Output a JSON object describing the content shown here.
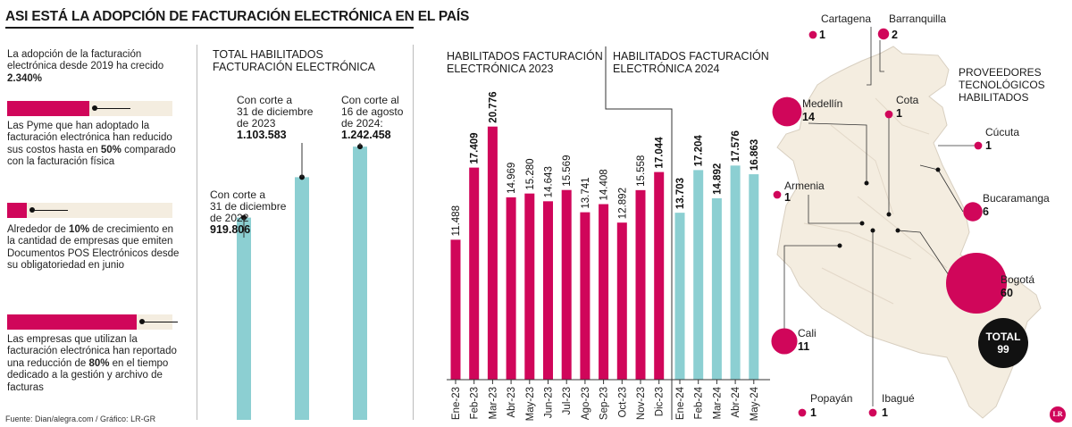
{
  "header": {
    "title": "ASI ESTÁ LA ADOPCIÓN DE FACTURACIÓN ELECTRÓNICA EN EL PAÍS",
    "source": "Fuente: Dian/alegra.com / Gráfico: LR-GR"
  },
  "facts": [
    {
      "pre": "La adopción de la facturación electrónica desde 2019 ha crecido ",
      "bold": "2.340%",
      "post": "",
      "bar_pct": null
    },
    {
      "pre": "Las Pyme que han adoptado la facturación electrónica han reducido sus costos hasta en ",
      "bold": "50%",
      "post": " comparado con la facturación física",
      "bar_pct": 50
    },
    {
      "pre": "Alrededor de ",
      "bold": "10%",
      "post": " de crecimiento en la cantidad de empresas que emiten Documentos POS Electrónicos desde su obligatoriedad en junio",
      "bar_pct": 10
    },
    {
      "pre": "Las empresas que utilizan la facturación electrónica han reportado una reducción de ",
      "bold": "80%",
      "post": " en el tiempo dedicado a la gestión y archivo de facturas",
      "bar_pct": 80
    }
  ],
  "colors": {
    "pink": "#d0065a",
    "teal": "#8ccfd2",
    "map": "#f4ede0",
    "track": "#f4ede0"
  },
  "chart_data": [
    {
      "type": "bar",
      "title": "TOTAL HABILITADOS FACTURACIÓN ELECTRÓNICA",
      "series": [
        {
          "values": [
            919806,
            1103583,
            1242458
          ]
        }
      ],
      "labels": [
        {
          "lines": [
            "Con corte a",
            "31 de diciembre",
            "de 2022"
          ],
          "value": "919.806"
        },
        {
          "lines": [
            "Con corte a",
            "31 de diciembre",
            "de 2023"
          ],
          "value": "1.103.583"
        },
        {
          "lines": [
            "Con corte al",
            "16 de agosto",
            "de 2024:"
          ],
          "value": "1.242.458"
        }
      ],
      "ylim": [
        0,
        1300000
      ]
    },
    {
      "type": "bar",
      "title": "HABILITADOS FACTURACIÓN ELECTRÓNICA 2023",
      "categories": [
        "Ene-23",
        "Feb-23",
        "Mar-23",
        "Abr-23",
        "May-23",
        "Jun-23",
        "Jul-23",
        "Ago-23",
        "Sep-23",
        "Oct-23",
        "Nov-23",
        "Dic-23"
      ],
      "values": [
        11488,
        17409,
        20776,
        14969,
        15280,
        14643,
        15569,
        13741,
        14408,
        12892,
        15558,
        17044
      ],
      "value_labels": [
        "11.488",
        "17.409",
        "20.776",
        "14.969",
        "15.280",
        "14.643",
        "15.569",
        "13.741",
        "14.408",
        "12.892",
        "15.558",
        "17.044"
      ],
      "ylim": [
        0,
        22000
      ]
    },
    {
      "type": "bar",
      "title": "HABILITADOS FACTURACIÓN ELECTRÓNICA 2024",
      "categories": [
        "Ene-24",
        "Feb-24",
        "Mar-24",
        "Abr-24",
        "May-24"
      ],
      "values": [
        13703,
        17204,
        14892,
        17576,
        16863
      ],
      "value_labels": [
        "13.703",
        "17.204",
        "14.892",
        "17.576",
        "16.863"
      ],
      "ylim": [
        0,
        22000
      ]
    }
  ],
  "map": {
    "title": "PROVEEDORES TECNOLÓGICOS HABILITADOS",
    "total_label": "TOTAL",
    "total_value": "99",
    "lr_logo": "LR",
    "cities": [
      {
        "name": "Cartagena",
        "value": 1
      },
      {
        "name": "Barranquilla",
        "value": 2
      },
      {
        "name": "Medellín",
        "value": 14
      },
      {
        "name": "Cota",
        "value": 1
      },
      {
        "name": "Cúcuta",
        "value": 1
      },
      {
        "name": "Armenia",
        "value": 1
      },
      {
        "name": "Bucaramanga",
        "value": 6
      },
      {
        "name": "Bogotá",
        "value": 60
      },
      {
        "name": "Cali",
        "value": 11
      },
      {
        "name": "Popayán",
        "value": 1
      },
      {
        "name": "Ibagué",
        "value": 1
      }
    ]
  }
}
